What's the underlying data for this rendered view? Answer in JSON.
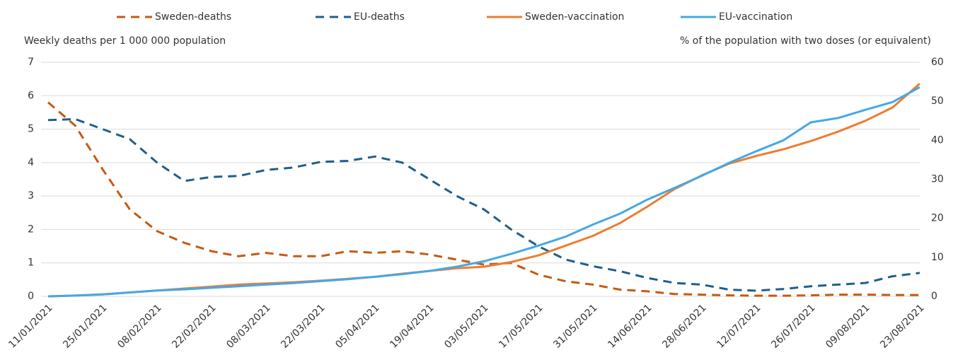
{
  "chart_data": {
    "type": "line",
    "ylabel": "Weekly deaths per 1 000 000 population",
    "y2label": "% of the population with two doses (or equivalent)",
    "categories": [
      "11/01/2021",
      null,
      "25/01/2021",
      null,
      "08/02/2021",
      null,
      "22/02/2021",
      null,
      "08/03/2021",
      null,
      "22/03/2021",
      null,
      "05/04/2021",
      null,
      "19/04/2021",
      null,
      "03/05/2021",
      null,
      "17/05/2021",
      null,
      "31/05/2021",
      null,
      "14/06/2021",
      null,
      "28/06/2021",
      null,
      "12/07/2021",
      null,
      "26/07/2021",
      null,
      "09/08/2021",
      null,
      "23/08/2021"
    ],
    "ylim": [
      0,
      7
    ],
    "yticks": [
      0,
      1,
      2,
      3,
      4,
      5,
      6,
      7
    ],
    "y2lim": [
      0,
      60
    ],
    "y2ticks": [
      0,
      10,
      20,
      30,
      40,
      50,
      60
    ],
    "grid": true,
    "legend": "top",
    "series": [
      {
        "name": "Sweden-deaths",
        "color": "#c55a11",
        "dash": true,
        "values": [
          5.8,
          5.1,
          3.8,
          2.6,
          1.95,
          1.6,
          1.35,
          1.2,
          1.3,
          1.2,
          1.2,
          1.35,
          1.3,
          1.35,
          1.25,
          1.1,
          0.95,
          1.0,
          0.65,
          0.45,
          0.35,
          0.2,
          0.15,
          0.07,
          0.05,
          0.03,
          0.02,
          0.02,
          0.03,
          0.05,
          0.05,
          0.04,
          0.04
        ]
      },
      {
        "name": "EU-deaths",
        "color": "#1f5f8b",
        "dash": true,
        "values": [
          5.27,
          5.3,
          5.0,
          4.7,
          4.0,
          3.45,
          3.57,
          3.6,
          3.78,
          3.85,
          4.02,
          4.05,
          4.18,
          4.0,
          3.5,
          3.0,
          2.6,
          2.0,
          1.5,
          1.1,
          0.9,
          0.75,
          0.55,
          0.4,
          0.35,
          0.2,
          0.17,
          0.22,
          0.3,
          0.35,
          0.4,
          0.6,
          0.7
        ]
      },
      {
        "name": "Sweden-vaccination",
        "color": "#ed7d31",
        "dash": false,
        "axis": "y2",
        "values": [
          0,
          0.2,
          0.5,
          1,
          1.5,
          2,
          2.5,
          3,
          3.3,
          3.6,
          4,
          4.5,
          5,
          5.8,
          6.5,
          7.2,
          7.6,
          8.8,
          10.5,
          13,
          15.5,
          18.8,
          23,
          27.5,
          31,
          34,
          36,
          37.7,
          39.8,
          42.2,
          45,
          48.4,
          54.5
        ]
      },
      {
        "name": "EU-vaccination",
        "color": "#45a8e6",
        "dash": false,
        "axis": "y2",
        "values": [
          0,
          0.2,
          0.5,
          1,
          1.5,
          1.8,
          2.2,
          2.6,
          3,
          3.4,
          3.9,
          4.4,
          5,
          5.7,
          6.5,
          7.6,
          9,
          10.9,
          13,
          15.3,
          18.4,
          21.2,
          24.8,
          27.8,
          30.9,
          34.2,
          37.2,
          40,
          44.6,
          45.7,
          47.8,
          49.8,
          53.6
        ]
      }
    ]
  }
}
